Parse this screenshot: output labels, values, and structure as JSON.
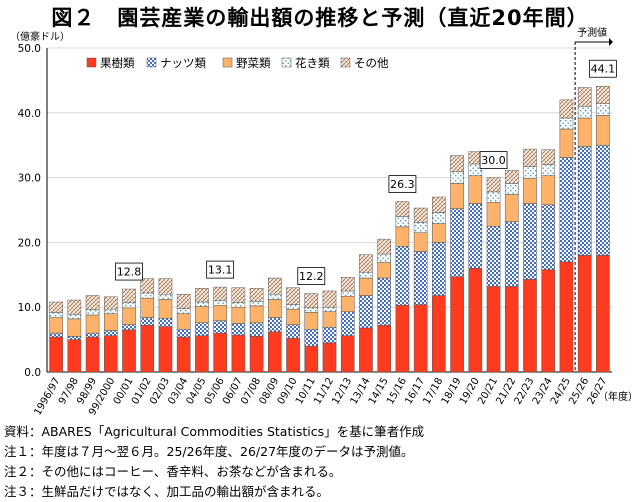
{
  "title": "図２　園芸産業の輸出額の推移と予測（直近20年間）",
  "chart_data": {
    "type": "bar",
    "stacked": true,
    "title": "図２　園芸産業の輸出額の推移と予測（直近20年間）",
    "ylabel": "（億豪ドル）",
    "xlabel": "（年度）",
    "ylim": [
      0,
      50
    ],
    "yticks": [
      "0.0",
      "10.0",
      "20.0",
      "30.0",
      "40.0",
      "50.0"
    ],
    "forecast_label": "予測値",
    "categories": [
      "1996/97",
      "97/98",
      "98/99",
      "99/2000",
      "00/01",
      "01/02",
      "02/03",
      "03/04",
      "04/05",
      "05/06",
      "06/07",
      "07/08",
      "08/09",
      "09/10",
      "10/11",
      "11/12",
      "12/13",
      "13/14",
      "14/15",
      "15/16",
      "16/17",
      "17/18",
      "18/19",
      "19/20",
      "20/21",
      "21/22",
      "22/23",
      "23/24",
      "24/25",
      "25/26",
      "26/27"
    ],
    "series": [
      {
        "name": "果樹類",
        "color": "#ff3b1f",
        "values": [
          5.4,
          5.0,
          5.4,
          5.6,
          6.5,
          7.2,
          7.0,
          5.4,
          5.6,
          6.0,
          5.7,
          5.5,
          6.2,
          5.2,
          4.0,
          4.5,
          5.6,
          6.8,
          7.2,
          10.3,
          10.4,
          11.8,
          14.7,
          16.0,
          13.2,
          13.2,
          14.3,
          15.8,
          17.0,
          18.0,
          18.0
        ]
      },
      {
        "name": "ナッツ類",
        "color": "#4a78d0",
        "values": [
          0.6,
          0.5,
          0.6,
          0.8,
          0.8,
          1.2,
          1.3,
          1.2,
          2.0,
          1.9,
          1.8,
          2.1,
          2.2,
          2.1,
          2.6,
          2.4,
          3.7,
          5.0,
          7.3,
          9.1,
          8.2,
          8.2,
          10.5,
          10.0,
          9.3,
          10.0,
          11.7,
          10.0,
          16.1,
          16.8,
          17.0
        ]
      },
      {
        "name": "野菜類",
        "color": "#ffb26a",
        "values": [
          2.4,
          2.7,
          2.8,
          2.6,
          2.6,
          3.0,
          2.9,
          2.4,
          2.5,
          2.4,
          2.5,
          2.6,
          2.8,
          2.4,
          2.6,
          2.4,
          2.4,
          2.7,
          2.4,
          3.0,
          2.9,
          2.9,
          3.9,
          4.3,
          3.7,
          4.2,
          3.9,
          4.5,
          4.4,
          4.4,
          4.6
        ]
      },
      {
        "name": "花き類",
        "color": "#cfe8f2",
        "values": [
          0.8,
          0.7,
          0.8,
          0.7,
          0.8,
          0.8,
          0.8,
          0.8,
          0.7,
          0.7,
          0.7,
          0.7,
          0.8,
          0.7,
          0.7,
          0.7,
          0.8,
          0.9,
          1.3,
          1.6,
          1.6,
          1.7,
          1.8,
          1.8,
          1.6,
          1.7,
          1.8,
          1.7,
          1.7,
          1.8,
          1.8
        ]
      },
      {
        "name": "その他",
        "color": "#ffffff",
        "values": [
          1.6,
          2.2,
          2.2,
          1.9,
          2.1,
          2.2,
          2.4,
          2.2,
          2.1,
          2.1,
          2.3,
          2.0,
          2.5,
          2.6,
          2.2,
          2.5,
          2.1,
          2.7,
          2.3,
          2.3,
          2.2,
          2.4,
          2.5,
          1.9,
          2.2,
          2.0,
          2.7,
          2.3,
          2.8,
          2.9,
          2.7
        ]
      }
    ],
    "annotations": [
      {
        "category": "00/01",
        "label": "12.8"
      },
      {
        "category": "05/06",
        "label": "13.1"
      },
      {
        "category": "10/11",
        "label": "12.2"
      },
      {
        "category": "15/16",
        "label": "26.3"
      },
      {
        "category": "20/21",
        "label": "30.0"
      },
      {
        "category": "26/27",
        "label": "44.1"
      }
    ],
    "forecast_start": "25/26",
    "legend": "top-left"
  },
  "notes": [
    "資料：ABARES「Agricultural Commodities Statistics」を基に筆者作成",
    "注１：年度は７月～翌６月。25/26年度、26/27年度のデータは予測値。",
    "注２：その他にはコーヒー、香辛料、お茶などが含まれる。",
    "注３：生鮮品だけではなく、加工品の輸出額が含まれる。"
  ]
}
